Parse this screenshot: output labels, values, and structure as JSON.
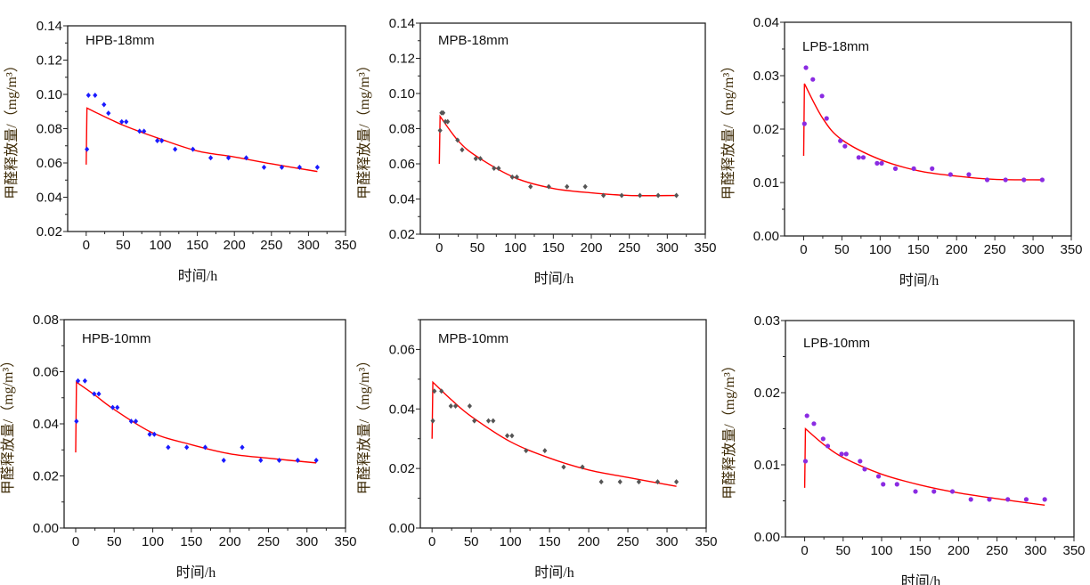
{
  "chart_data": [
    {
      "type": "scatter",
      "title": "HPB-18mm",
      "xlabel": "时间/h",
      "ylabel": "甲醛释放量/（mg/m³）",
      "xlim": [
        -25,
        350
      ],
      "ylim": [
        0.02,
        0.14
      ],
      "xticks": [
        0,
        50,
        100,
        150,
        200,
        250,
        300,
        350
      ],
      "yticks": [
        0.02,
        0.04,
        0.06,
        0.08,
        0.1,
        0.12,
        0.14
      ],
      "marker_color": "#1a1aff",
      "marker": "diamond",
      "fit_color": "#ff0000",
      "grid": false,
      "x": [
        1,
        3,
        12,
        24,
        30,
        48,
        54,
        72,
        78,
        96,
        102,
        120,
        144,
        168,
        192,
        216,
        240,
        264,
        288,
        312
      ],
      "y": [
        0.068,
        0.0995,
        0.0995,
        0.094,
        0.089,
        0.084,
        0.084,
        0.0785,
        0.0785,
        0.073,
        0.073,
        0.068,
        0.068,
        0.063,
        0.063,
        0.063,
        0.0575,
        0.0575,
        0.0575,
        0.0575
      ],
      "fit_x": [
        0,
        1,
        50,
        100,
        150,
        200,
        250,
        312
      ],
      "fit_y": [
        0.059,
        0.092,
        0.082,
        0.074,
        0.067,
        0.0635,
        0.0595,
        0.055
      ]
    },
    {
      "type": "scatter",
      "title": "MPB-18mm",
      "xlabel": "时间/h",
      "ylabel": "甲醛释放量/（mg/m³）",
      "xlim": [
        -25,
        350
      ],
      "ylim": [
        0.02,
        0.14
      ],
      "xticks": [
        0,
        50,
        100,
        150,
        200,
        250,
        300,
        350
      ],
      "yticks": [
        0.02,
        0.04,
        0.06,
        0.08,
        0.1,
        0.12,
        0.14
      ],
      "marker_color": "#555555",
      "marker": "diamond",
      "fit_color": "#ff0000",
      "grid": false,
      "x": [
        1,
        3,
        5,
        8,
        11,
        24,
        30,
        48,
        54,
        72,
        78,
        96,
        102,
        120,
        144,
        168,
        192,
        216,
        240,
        264,
        288,
        312
      ],
      "y": [
        0.079,
        0.089,
        0.089,
        0.084,
        0.084,
        0.0735,
        0.068,
        0.063,
        0.063,
        0.0575,
        0.0575,
        0.0525,
        0.0525,
        0.047,
        0.047,
        0.047,
        0.047,
        0.042,
        0.042,
        0.042,
        0.042,
        0.042
      ],
      "fit_x": [
        0,
        1,
        25,
        50,
        100,
        150,
        200,
        250,
        312
      ],
      "fit_y": [
        0.06,
        0.087,
        0.073,
        0.064,
        0.052,
        0.046,
        0.0435,
        0.042,
        0.042
      ]
    },
    {
      "type": "scatter",
      "title": "LPB-18mm",
      "xlabel": "时间/h",
      "ylabel": "甲醛释放量/（mg/m³）",
      "xlim": [
        -25,
        350
      ],
      "ylim": [
        0.0,
        0.04
      ],
      "xticks": [
        0,
        50,
        100,
        150,
        200,
        250,
        300,
        350
      ],
      "yticks": [
        0.0,
        0.01,
        0.02,
        0.03,
        0.04
      ],
      "marker_color": "#8a2be2",
      "marker": "circle",
      "fit_color": "#ff0000",
      "grid": false,
      "x": [
        1,
        3,
        12,
        24,
        30,
        48,
        54,
        72,
        78,
        96,
        102,
        120,
        144,
        168,
        192,
        216,
        240,
        264,
        288,
        312
      ],
      "y": [
        0.021,
        0.0315,
        0.0293,
        0.0262,
        0.022,
        0.0178,
        0.0168,
        0.0147,
        0.0147,
        0.0136,
        0.0136,
        0.0126,
        0.0126,
        0.0126,
        0.0115,
        0.0115,
        0.0105,
        0.0105,
        0.0105,
        0.0105
      ],
      "fit_x": [
        0,
        1,
        25,
        50,
        100,
        150,
        200,
        250,
        312
      ],
      "fit_y": [
        0.015,
        0.0285,
        0.022,
        0.018,
        0.0143,
        0.0122,
        0.0112,
        0.0106,
        0.0105
      ]
    },
    {
      "type": "scatter",
      "title": "HPB-10mm",
      "xlabel": "时间/h",
      "ylabel": "甲醛释放量/（mg/m³）",
      "xlim": [
        -15,
        350
      ],
      "ylim": [
        0.0,
        0.08
      ],
      "xticks": [
        0,
        50,
        100,
        150,
        200,
        250,
        300,
        350
      ],
      "yticks": [
        0.0,
        0.02,
        0.04,
        0.06,
        0.08
      ],
      "marker_color": "#1a1aff",
      "marker": "diamond",
      "fit_color": "#ff0000",
      "grid": false,
      "x": [
        1,
        3,
        12,
        24,
        30,
        48,
        54,
        72,
        78,
        96,
        102,
        120,
        144,
        168,
        192,
        216,
        240,
        264,
        288,
        312
      ],
      "y": [
        0.041,
        0.0565,
        0.0565,
        0.0515,
        0.0515,
        0.0463,
        0.0463,
        0.041,
        0.041,
        0.036,
        0.036,
        0.031,
        0.031,
        0.031,
        0.026,
        0.031,
        0.026,
        0.026,
        0.026,
        0.026
      ],
      "fit_x": [
        0,
        1,
        25,
        50,
        100,
        150,
        200,
        250,
        312
      ],
      "fit_y": [
        0.029,
        0.056,
        0.051,
        0.0455,
        0.0365,
        0.032,
        0.0285,
        0.0268,
        0.025
      ]
    },
    {
      "type": "scatter",
      "title": "MPB-10mm",
      "xlabel": "时间/h",
      "ylabel": "甲醛释放量/（mg/m³）",
      "xlim": [
        -15,
        350
      ],
      "ylim": [
        0.0,
        0.07
      ],
      "xticks": [
        0,
        50,
        100,
        150,
        200,
        250,
        300,
        350
      ],
      "yticks": [
        0.0,
        0.02,
        0.04,
        0.06
      ],
      "marker_color": "#555555",
      "marker": "diamond",
      "fit_color": "#ff0000",
      "grid": false,
      "x": [
        1,
        3,
        12,
        24,
        30,
        48,
        54,
        72,
        78,
        96,
        102,
        120,
        144,
        168,
        192,
        216,
        240,
        264,
        288,
        312
      ],
      "y": [
        0.036,
        0.046,
        0.046,
        0.041,
        0.041,
        0.041,
        0.036,
        0.036,
        0.036,
        0.031,
        0.031,
        0.026,
        0.026,
        0.0205,
        0.0205,
        0.0155,
        0.0155,
        0.0155,
        0.0155,
        0.0155
      ],
      "fit_x": [
        0,
        1,
        25,
        50,
        100,
        150,
        200,
        250,
        312
      ],
      "fit_y": [
        0.03,
        0.049,
        0.043,
        0.0375,
        0.029,
        0.0235,
        0.0195,
        0.017,
        0.014
      ]
    },
    {
      "type": "scatter",
      "title": "LPB-10mm",
      "xlabel": "时间/h",
      "ylabel": "甲醛释放量/（mg/m³）",
      "xlim": [
        -25,
        350
      ],
      "ylim": [
        0.0,
        0.03
      ],
      "xticks": [
        0,
        50,
        100,
        150,
        200,
        250,
        300,
        350
      ],
      "yticks": [
        0.0,
        0.01,
        0.02,
        0.03
      ],
      "marker_color": "#8a2be2",
      "marker": "circle",
      "fit_color": "#ff0000",
      "grid": false,
      "x": [
        1,
        3,
        12,
        24,
        30,
        48,
        54,
        72,
        78,
        96,
        102,
        120,
        144,
        168,
        192,
        216,
        240,
        264,
        288,
        312
      ],
      "y": [
        0.0105,
        0.0168,
        0.0157,
        0.0136,
        0.0126,
        0.0115,
        0.0115,
        0.0105,
        0.0094,
        0.0084,
        0.0073,
        0.0073,
        0.0063,
        0.0063,
        0.0063,
        0.0052,
        0.0052,
        0.0052,
        0.0052,
        0.0052
      ],
      "fit_x": [
        0,
        1,
        25,
        50,
        100,
        150,
        200,
        250,
        312
      ],
      "fit_y": [
        0.0068,
        0.015,
        0.0128,
        0.011,
        0.0087,
        0.0072,
        0.0061,
        0.0053,
        0.0044
      ]
    }
  ]
}
